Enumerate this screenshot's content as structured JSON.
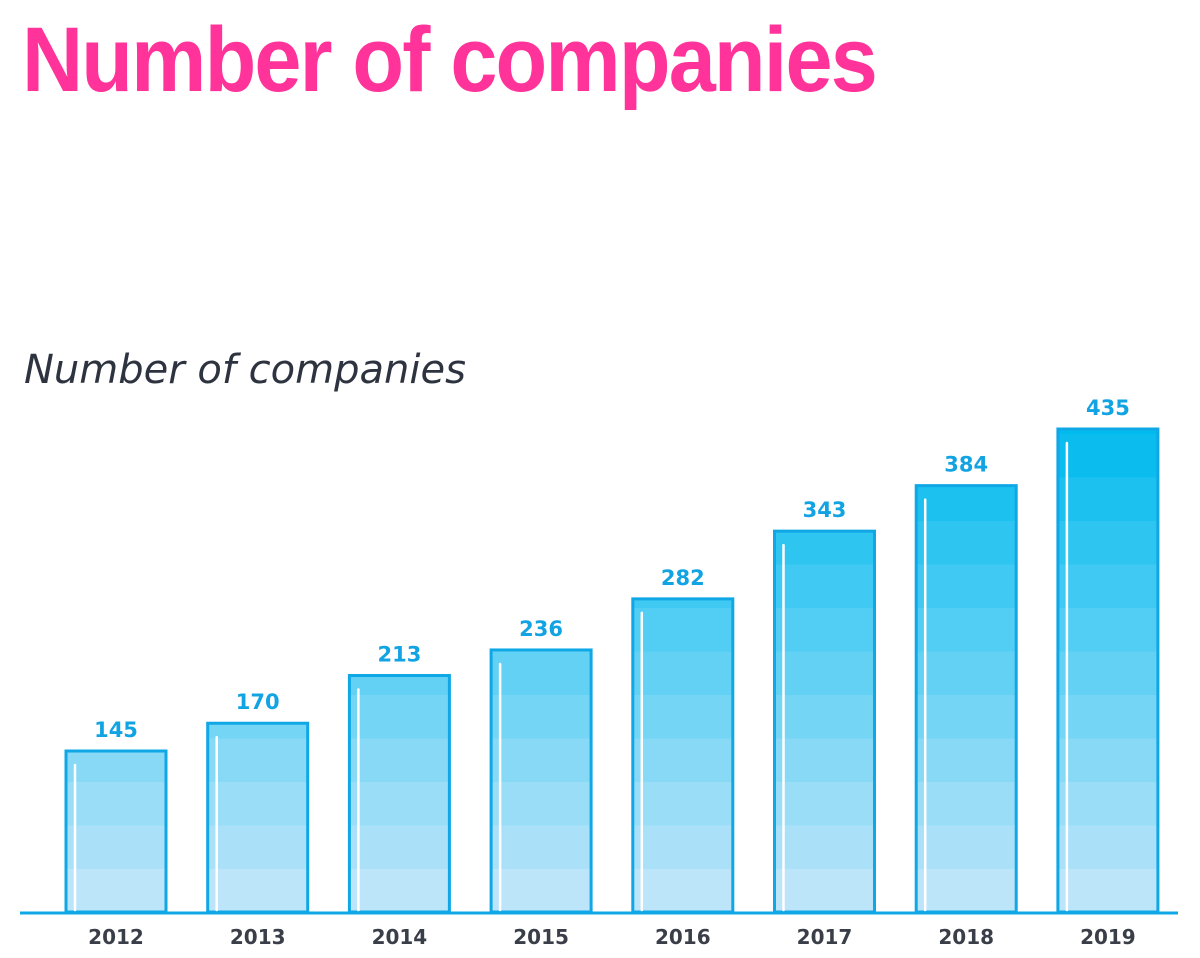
{
  "header": {
    "title": "Number of companies"
  },
  "colors": {
    "title": "#ff3399",
    "bar_stroke": "#0fa7e6",
    "bar_top": "#00bbee",
    "bar_bottom": "#c5e7f9",
    "value_label": "#12a3e3",
    "axis": "#0fa7e6"
  },
  "chart_data": {
    "type": "bar",
    "title": "Number of companies",
    "categories": [
      "2012",
      "2013",
      "2014",
      "2015",
      "2016",
      "2017",
      "2018",
      "2019"
    ],
    "values": [
      145,
      170,
      213,
      236,
      282,
      343,
      384,
      435
    ],
    "xlabel": "",
    "ylabel": "",
    "ylim": [
      0,
      435
    ],
    "grid": false,
    "legend": "none"
  }
}
